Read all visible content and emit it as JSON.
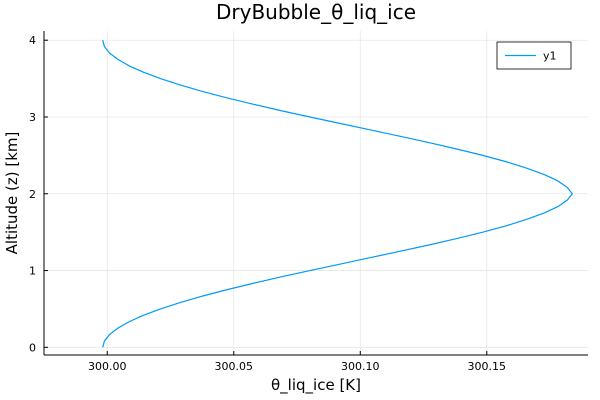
{
  "chart_data": {
    "type": "line",
    "title": "DryBubble_θ_liq_ice",
    "xlabel": "θ_liq_ice [K]",
    "ylabel": "Altitude (z) [km]",
    "xlim": [
      299.975,
      300.19
    ],
    "ylim": [
      -0.1,
      4.12
    ],
    "xticks": [
      300.0,
      300.05,
      300.1,
      300.15
    ],
    "xtick_labels": [
      "300.00",
      "300.05",
      "300.10",
      "300.15"
    ],
    "yticks": [
      0,
      1,
      2,
      3,
      4
    ],
    "ytick_labels": [
      "0",
      "1",
      "2",
      "3",
      "4"
    ],
    "grid": true,
    "legend_position": "top-right",
    "series": [
      {
        "name": "y1",
        "color": "#009AF9",
        "x": [
          299.9982,
          299.9989,
          300.0009,
          300.0042,
          300.0086,
          300.0143,
          300.021,
          300.0288,
          300.0376,
          300.0472,
          300.0576,
          300.0686,
          300.0801,
          300.0919,
          300.1038,
          300.1156,
          300.1271,
          300.1381,
          300.1484,
          300.1577,
          300.1658,
          300.1727,
          300.1781,
          300.1818,
          300.1838,
          300.1818,
          300.1781,
          300.1727,
          300.1658,
          300.1577,
          300.1484,
          300.1381,
          300.1271,
          300.1156,
          300.1038,
          300.0919,
          300.0801,
          300.0686,
          300.0576,
          300.0472,
          300.0376,
          300.0288,
          300.021,
          300.0143,
          300.0086,
          300.0042,
          300.0009,
          299.9989,
          299.9982
        ],
        "y": [
          0.0,
          0.083,
          0.167,
          0.25,
          0.333,
          0.417,
          0.5,
          0.583,
          0.667,
          0.75,
          0.833,
          0.917,
          1.0,
          1.083,
          1.167,
          1.25,
          1.333,
          1.417,
          1.5,
          1.583,
          1.667,
          1.75,
          1.833,
          1.917,
          2.0,
          2.083,
          2.167,
          2.25,
          2.333,
          2.417,
          2.5,
          2.583,
          2.667,
          2.75,
          2.833,
          2.917,
          3.0,
          3.083,
          3.167,
          3.25,
          3.333,
          3.417,
          3.5,
          3.583,
          3.667,
          3.75,
          3.833,
          3.917,
          4.0
        ]
      }
    ]
  }
}
